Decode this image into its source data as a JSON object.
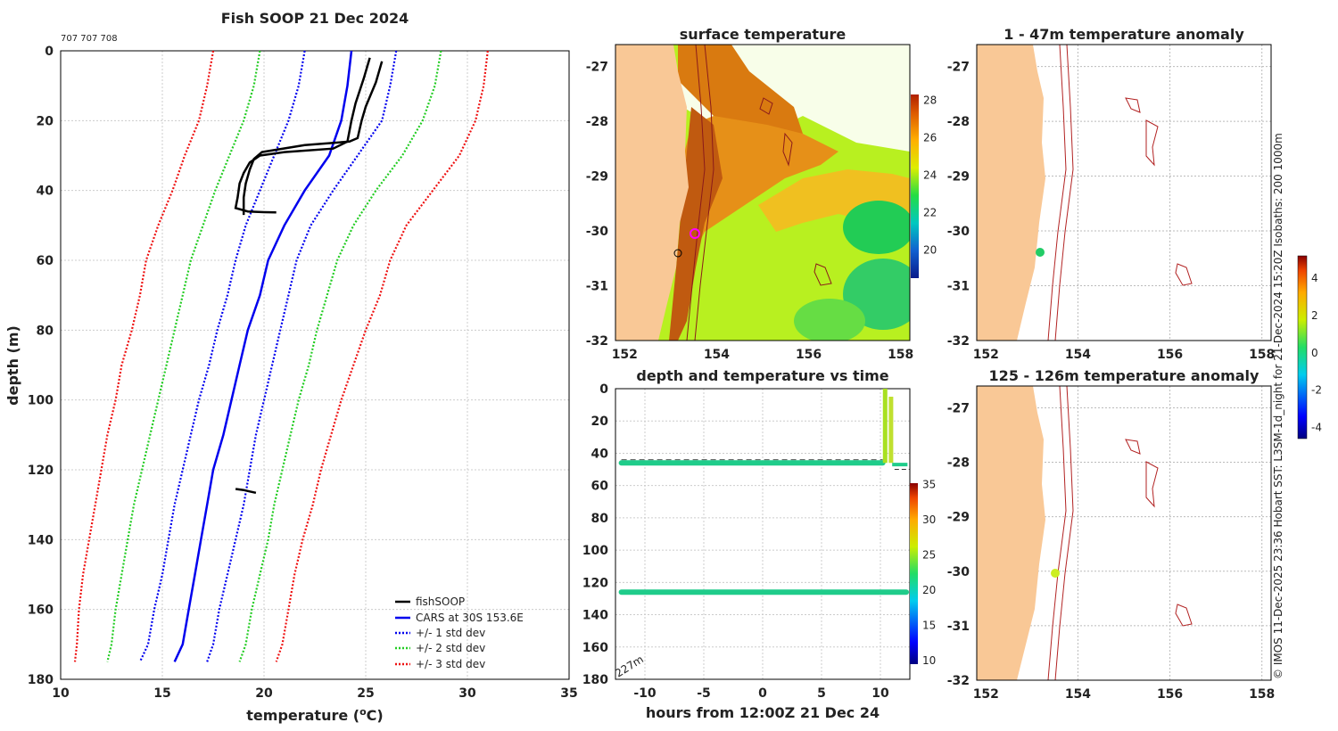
{
  "colors": {
    "land": "#f9c896",
    "isobath": "#b22222",
    "grid": "#cccccc",
    "fish": "#000000",
    "cars": "#0000ee",
    "sd1": "#0000ee",
    "sd2": "#22cc22",
    "sd3": "#ee1111"
  },
  "profile": {
    "title": "Fish SOOP 21 Dec 2024",
    "id_text": "707 707 708",
    "xlabel": "temperature (",
    "xlabel_sup": "o",
    "xlabel_end": "C)",
    "ylabel": "depth (m)",
    "xticks": [
      "10",
      "15",
      "20",
      "25",
      "30",
      "35"
    ],
    "yticks": [
      "0",
      "20",
      "40",
      "60",
      "80",
      "100",
      "120",
      "140",
      "160",
      "180"
    ],
    "legend": [
      "fishSOOP",
      "CARS at 30S 153.6E",
      "+/- 1 std dev",
      "+/- 2 std dev",
      "+/- 3 std dev"
    ]
  },
  "sst": {
    "title": "surface temperature",
    "yticks": [
      "-27",
      "-28",
      "-29",
      "-30",
      "-31",
      "-32"
    ],
    "xticks": [
      "152",
      "154",
      "156",
      "158"
    ],
    "cbar_ticks": [
      "28",
      "26",
      "24",
      "22",
      "20"
    ]
  },
  "timeplot": {
    "title": "depth and temperature vs time",
    "xlabel": "hours from 12:00Z 21 Dec 24",
    "xticks": [
      "-10",
      "-5",
      "0",
      "5",
      "10"
    ],
    "yticks": [
      "0",
      "20",
      "40",
      "60",
      "80",
      "100",
      "120",
      "140",
      "160",
      "180"
    ],
    "bottom_label": "227m",
    "cbar_ticks": [
      "35",
      "30",
      "25",
      "20",
      "15",
      "10"
    ]
  },
  "anom1": {
    "title": "1 - 47m temperature anomaly",
    "yticks": [
      "-27",
      "-28",
      "-29",
      "-30",
      "-31",
      "-32"
    ],
    "xticks": [
      "152",
      "154",
      "156",
      "158"
    ]
  },
  "anom2": {
    "title": "125 - 126m temperature anomaly",
    "yticks": [
      "-27",
      "-28",
      "-29",
      "-30",
      "-31",
      "-32"
    ],
    "xticks": [
      "152",
      "154",
      "156",
      "158"
    ]
  },
  "anom_cbar": {
    "ticks": [
      "4",
      "2",
      "0",
      "-2",
      "-4"
    ]
  },
  "side_text": "© IMOS 11-Dec-2025 23:36 Hobart SST: L3SM-1d_night for 21-Dec-2024 15:20Z Isobaths: 200  1000m",
  "chart_data": [
    {
      "type": "line",
      "title": "Fish SOOP 21 Dec 2024",
      "xlabel": "temperature (oC)",
      "ylabel": "depth (m)",
      "xlim": [
        10,
        35
      ],
      "ylim": [
        180,
        0
      ],
      "series": [
        {
          "name": "CARS at 30S 153.6E",
          "style": "solid",
          "points": [
            [
              24.3,
              0
            ],
            [
              24.1,
              10
            ],
            [
              23.8,
              20
            ],
            [
              23.2,
              30
            ],
            [
              22.0,
              40
            ],
            [
              21.0,
              50
            ],
            [
              20.2,
              60
            ],
            [
              19.8,
              70
            ],
            [
              19.2,
              80
            ],
            [
              18.8,
              90
            ],
            [
              18.4,
              100
            ],
            [
              18.0,
              110
            ],
            [
              17.5,
              120
            ],
            [
              17.2,
              130
            ],
            [
              16.9,
              140
            ],
            [
              16.6,
              150
            ],
            [
              16.3,
              160
            ],
            [
              16.0,
              170
            ],
            [
              15.6,
              175
            ]
          ]
        },
        {
          "name": "+/- 1 std dev",
          "style": "dotted",
          "points": [
            [
              26.5,
              0
            ],
            [
              26.2,
              10
            ],
            [
              25.8,
              20
            ],
            [
              24.6,
              30
            ],
            [
              23.4,
              40
            ],
            [
              22.3,
              50
            ],
            [
              21.6,
              60
            ],
            [
              21.2,
              70
            ],
            [
              20.8,
              80
            ],
            [
              20.4,
              90
            ],
            [
              20.0,
              100
            ],
            [
              19.6,
              110
            ],
            [
              19.3,
              120
            ],
            [
              19.0,
              130
            ],
            [
              18.6,
              140
            ],
            [
              18.2,
              150
            ],
            [
              17.8,
              160
            ],
            [
              17.5,
              170
            ],
            [
              17.2,
              175
            ]
          ]
        },
        {
          "name": "+/- 1 std dev (lower)",
          "style": "dotted",
          "points": [
            [
              22.0,
              0
            ],
            [
              21.7,
              10
            ],
            [
              21.2,
              20
            ],
            [
              20.5,
              30
            ],
            [
              19.8,
              40
            ],
            [
              19.1,
              50
            ],
            [
              18.6,
              60
            ],
            [
              18.2,
              70
            ],
            [
              17.7,
              80
            ],
            [
              17.3,
              90
            ],
            [
              16.8,
              100
            ],
            [
              16.4,
              110
            ],
            [
              16.0,
              120
            ],
            [
              15.6,
              130
            ],
            [
              15.3,
              140
            ],
            [
              15.0,
              150
            ],
            [
              14.6,
              160
            ],
            [
              14.3,
              170
            ],
            [
              13.9,
              175
            ]
          ]
        },
        {
          "name": "+/- 2 std dev",
          "style": "dotted",
          "points": [
            [
              28.7,
              0
            ],
            [
              28.4,
              10
            ],
            [
              27.8,
              20
            ],
            [
              26.8,
              30
            ],
            [
              25.5,
              40
            ],
            [
              24.4,
              50
            ],
            [
              23.6,
              60
            ],
            [
              23.1,
              70
            ],
            [
              22.6,
              80
            ],
            [
              22.2,
              90
            ],
            [
              21.7,
              100
            ],
            [
              21.3,
              110
            ],
            [
              20.9,
              120
            ],
            [
              20.5,
              130
            ],
            [
              20.2,
              140
            ],
            [
              19.8,
              150
            ],
            [
              19.4,
              160
            ],
            [
              19.1,
              170
            ],
            [
              18.8,
              175
            ]
          ]
        },
        {
          "name": "+/- 2 std dev (lower)",
          "style": "dotted",
          "points": [
            [
              19.8,
              0
            ],
            [
              19.5,
              10
            ],
            [
              19.0,
              20
            ],
            [
              18.3,
              30
            ],
            [
              17.6,
              40
            ],
            [
              17.0,
              50
            ],
            [
              16.4,
              60
            ],
            [
              16.0,
              70
            ],
            [
              15.6,
              80
            ],
            [
              15.2,
              90
            ],
            [
              14.8,
              100
            ],
            [
              14.4,
              110
            ],
            [
              14.0,
              120
            ],
            [
              13.6,
              130
            ],
            [
              13.3,
              140
            ],
            [
              13.0,
              150
            ],
            [
              12.7,
              160
            ],
            [
              12.5,
              170
            ],
            [
              12.3,
              175
            ]
          ]
        },
        {
          "name": "+/- 3 std dev",
          "style": "dotted",
          "points": [
            [
              31.0,
              0
            ],
            [
              30.8,
              10
            ],
            [
              30.4,
              20
            ],
            [
              29.6,
              30
            ],
            [
              28.3,
              40
            ],
            [
              27.0,
              50
            ],
            [
              26.2,
              60
            ],
            [
              25.7,
              70
            ],
            [
              25.0,
              80
            ],
            [
              24.4,
              90
            ],
            [
              23.8,
              100
            ],
            [
              23.3,
              110
            ],
            [
              22.8,
              120
            ],
            [
              22.4,
              130
            ],
            [
              21.9,
              140
            ],
            [
              21.5,
              150
            ],
            [
              21.2,
              160
            ],
            [
              20.9,
              170
            ],
            [
              20.6,
              175
            ]
          ]
        },
        {
          "name": "+/- 3 std dev (lower)",
          "style": "dotted",
          "points": [
            [
              17.5,
              0
            ],
            [
              17.2,
              10
            ],
            [
              16.8,
              20
            ],
            [
              16.1,
              30
            ],
            [
              15.5,
              40
            ],
            [
              14.8,
              50
            ],
            [
              14.2,
              60
            ],
            [
              13.9,
              70
            ],
            [
              13.5,
              80
            ],
            [
              13.0,
              90
            ],
            [
              12.7,
              100
            ],
            [
              12.3,
              110
            ],
            [
              12.0,
              120
            ],
            [
              11.7,
              130
            ],
            [
              11.4,
              140
            ],
            [
              11.1,
              150
            ],
            [
              10.9,
              160
            ],
            [
              10.8,
              170
            ],
            [
              10.7,
              175
            ]
          ]
        },
        {
          "name": "fishSOOP",
          "style": "solid",
          "points": [
            [
              25.2,
              2
            ],
            [
              24.9,
              8
            ],
            [
              24.5,
              15
            ],
            [
              24.3,
              20
            ],
            [
              24.1,
              26
            ],
            [
              23.4,
              28
            ],
            [
              21.0,
              29
            ],
            [
              19.8,
              30
            ],
            [
              19.3,
              32
            ],
            [
              19.0,
              35
            ],
            [
              18.8,
              38
            ],
            [
              18.7,
              42
            ],
            [
              18.6,
              45
            ],
            [
              19.2,
              46
            ],
            [
              20.0,
              46.2
            ],
            [
              20.6,
              46.3
            ]
          ]
        },
        {
          "name": "fishSOOP (second trace)",
          "style": "solid",
          "points": [
            [
              25.8,
              3
            ],
            [
              25.5,
              9
            ],
            [
              25.0,
              16
            ],
            [
              24.8,
              20
            ],
            [
              24.6,
              25
            ],
            [
              24.2,
              26
            ],
            [
              22.0,
              27
            ],
            [
              19.9,
              29
            ],
            [
              19.5,
              31
            ],
            [
              19.3,
              34
            ],
            [
              19.1,
              38
            ],
            [
              19.0,
              42
            ],
            [
              19.0,
              46
            ],
            [
              19.0,
              47
            ]
          ]
        },
        {
          "name": "fishSOOP (deep)",
          "style": "solid",
          "points": [
            [
              18.6,
              125.5
            ],
            [
              19.0,
              125.8
            ],
            [
              19.3,
              126.2
            ],
            [
              19.6,
              126.6
            ]
          ]
        }
      ],
      "legend": [
        "fishSOOP",
        "CARS at 30S 153.6E",
        "+/- 1 std dev",
        "+/- 2 std dev",
        "+/- 3 std dev"
      ]
    },
    {
      "type": "scatter",
      "title": "depth and temperature vs time",
      "xlabel": "hours from 12:00Z 21 Dec 24",
      "xlim": [
        -12.5,
        12.5
      ],
      "ylim": [
        180,
        0
      ],
      "color_range": [
        10,
        35
      ],
      "reference_depth": 44,
      "series": [
        {
          "name": "shallow",
          "hour_range": [
            -12,
            10.2
          ],
          "depth": 46,
          "temperature": 20
        },
        {
          "name": "deep",
          "hour_range": [
            -12,
            12.2
          ],
          "depth": 126,
          "temperature": 20
        },
        {
          "name": "surface excursion",
          "hour_range": [
            10.2,
            10.6
          ],
          "depth_range": [
            0,
            46
          ],
          "temperature_range": [
            20,
            26
          ]
        },
        {
          "name": "surface excursion 2",
          "hour_range": [
            10.8,
            11.0
          ],
          "depth_range": [
            5,
            46
          ],
          "temperature_range": [
            20,
            25
          ]
        }
      ]
    },
    {
      "type": "heatmap",
      "title": "surface temperature",
      "xlim": [
        151.8,
        158.2
      ],
      "ylim": [
        -32,
        -26.6
      ],
      "color_range": [
        18.5,
        28.3
      ]
    }
  ]
}
